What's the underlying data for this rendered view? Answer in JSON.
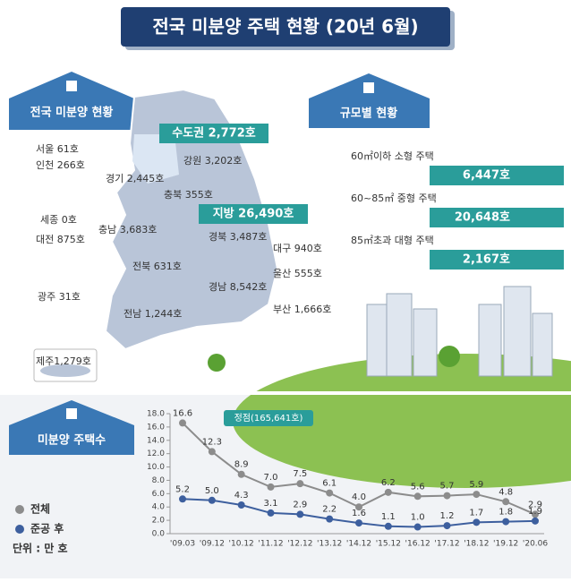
{
  "header": {
    "title": "전국 미분양 주택 현황 (20년 6월)"
  },
  "map": {
    "label": "전국 미분양 현황",
    "badges": [
      "수도권 2,772호",
      "지방 26,490호"
    ],
    "regions": [
      "서울  61호",
      "인천 266호",
      "경기 2,445호",
      "강원 3,202호",
      "충북 355호",
      "세종 0호",
      "충남 3,683호",
      "대전 875호",
      "경북 3,487호",
      "대구 940호",
      "전북 631호",
      "울산 555호",
      "경남 8,542호",
      "광주 31호",
      "전남 1,244호",
      "부산 1,666호",
      "제주1,279호"
    ]
  },
  "size": {
    "label": "규모별 현황",
    "items": [
      {
        "name": "60㎡이하 소형 주택",
        "value": "6,447호"
      },
      {
        "name": "60~85㎡ 중형 주택",
        "value": "20,648호"
      },
      {
        "name": "85㎡초과 대형 주택",
        "value": "2,167호"
      }
    ]
  },
  "trend": {
    "label": "미분양 주택수",
    "unit": "단위 : 만 호"
  },
  "chart_data": {
    "type": "line",
    "annotation": "정점(165,641호)",
    "categories": [
      "'09.03",
      "'09.12",
      "'10.12",
      "'11.12",
      "'12.12",
      "'13.12",
      "'14.12",
      "'15.12",
      "'16.12",
      "'17.12",
      "'18.12",
      "'19.12",
      "'20.06"
    ],
    "series": [
      {
        "name": "전체",
        "color": "#8c8c8c",
        "values": [
          16.6,
          12.3,
          8.9,
          7.0,
          7.5,
          6.1,
          4.0,
          6.2,
          5.6,
          5.7,
          5.9,
          4.8,
          2.9
        ],
        "value_labels": [
          "16.6",
          "12.3",
          "8.9",
          "7.0",
          "7.5",
          "6.1",
          "4.0",
          "6.2",
          "5.6",
          "5.7",
          "5.9",
          "4.8",
          "2.9"
        ]
      },
      {
        "name": "준공 후",
        "color": "#3d5f9e",
        "values": [
          5.2,
          5.0,
          4.3,
          3.1,
          2.9,
          2.2,
          1.6,
          1.1,
          1.0,
          1.2,
          1.7,
          1.8,
          1.9
        ],
        "value_labels": [
          "5.2",
          "5.0",
          "4.3",
          "3.1",
          "2.9",
          "2.2",
          "1.6",
          "1.1",
          "1.0",
          "1.2",
          "1.7",
          "1.8",
          "1.9"
        ]
      }
    ],
    "ylim": [
      0,
      18
    ],
    "yticks": [
      {
        "value": 0,
        "label": "0.0"
      },
      {
        "value": 2,
        "label": "2.0"
      },
      {
        "value": 4,
        "label": "4.0"
      },
      {
        "value": 6,
        "label": "6.0"
      },
      {
        "value": 8,
        "label": "8.0"
      },
      {
        "value": 10,
        "label": "10.0"
      },
      {
        "value": 12,
        "label": "12.0"
      },
      {
        "value": 14,
        "label": "14.0"
      },
      {
        "value": 16,
        "label": "16.0"
      },
      {
        "value": 18,
        "label": "18.0"
      }
    ],
    "grid": false
  }
}
